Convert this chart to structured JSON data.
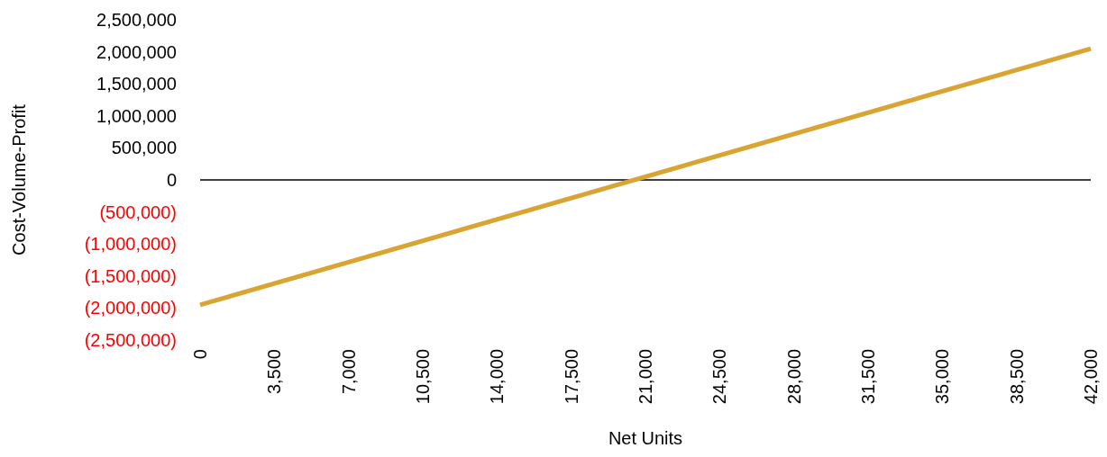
{
  "chart_data": {
    "type": "line",
    "xlabel": "Net Units",
    "ylabel": "Cost-Volume-Profit",
    "x": [
      0,
      42000
    ],
    "series": [
      {
        "color": "#d9a431",
        "values": [
          -1950000,
          2050000
        ]
      }
    ],
    "xlim": [
      0,
      42000
    ],
    "xticks": [
      {
        "value": 0,
        "label": "0"
      },
      {
        "value": 3500,
        "label": "3,500"
      },
      {
        "value": 7000,
        "label": "7,000"
      },
      {
        "value": 10500,
        "label": "10,500"
      },
      {
        "value": 14000,
        "label": "14,000"
      },
      {
        "value": 17500,
        "label": "17,500"
      },
      {
        "value": 21000,
        "label": "21,000"
      },
      {
        "value": 24500,
        "label": "24,500"
      },
      {
        "value": 28000,
        "label": "28,000"
      },
      {
        "value": 31500,
        "label": "31,500"
      },
      {
        "value": 35000,
        "label": "35,000"
      },
      {
        "value": 38500,
        "label": "38,500"
      },
      {
        "value": 42000,
        "label": "42,000"
      }
    ],
    "ylim": [
      -2500000,
      2500000
    ],
    "yticks": [
      {
        "value": 2500000,
        "label": "2,500,000"
      },
      {
        "value": 2000000,
        "label": "2,000,000"
      },
      {
        "value": 1500000,
        "label": "1,500,000"
      },
      {
        "value": 1000000,
        "label": "1,000,000"
      },
      {
        "value": 500000,
        "label": "500,000"
      },
      0,
      {
        "value": -500000,
        "label": "(500,000)"
      },
      {
        "value": -1000000,
        "label": "(1,000,000)"
      },
      {
        "value": -1500000,
        "label": "(1,500,000)"
      },
      {
        "value": -2000000,
        "label": "(2,000,000)"
      },
      {
        "value": -2500000,
        "label": "(2,500,000)"
      }
    ],
    "ref_lines": [
      {
        "axis": "y",
        "value": 0,
        "color": "#000000"
      }
    ],
    "marker": "none",
    "line_style": "solid"
  }
}
